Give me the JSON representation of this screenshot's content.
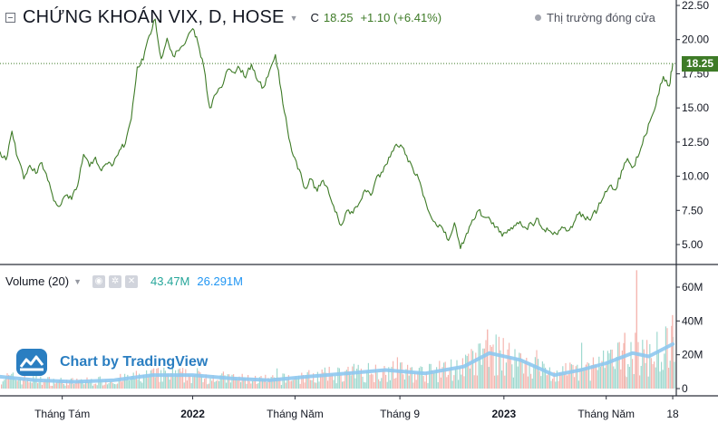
{
  "header": {
    "title": "CHỨNG KHOÁN VIX, D, HOSE",
    "ohlc_label": "C",
    "close": "18.25",
    "change": "+1.10 (+6.41%)",
    "market_status": "Thị trường đóng cửa"
  },
  "volume_header": {
    "title": "Volume (20)",
    "volume": "43.47M",
    "volume_ma": "26.291M"
  },
  "watermark": "Chart by TradingView",
  "colors": {
    "line": "#3e7b27",
    "vol_up": "#9fd9cf",
    "vol_down": "#f5b7b1",
    "vol_ma": "#8ec8f0",
    "grid_text": "#131722"
  },
  "chart_data": [
    {
      "type": "line",
      "title": "CHỨNG KHOÁN VIX, D, HOSE",
      "last_value": "18.25",
      "ylim": [
        3.5,
        22.5
      ],
      "y_ticks": [
        "22.50",
        "20.00",
        "17.50",
        "15.00",
        "12.50",
        "10.00",
        "7.50",
        "5.00"
      ],
      "x_ticks": [
        "Tháng Tám",
        "2022",
        "Tháng Năm",
        "Tháng 9",
        "2023",
        "Tháng Năm",
        "18"
      ],
      "x_tick_dates": [
        "2021-08-01",
        "2022-01-01",
        "2022-05-01",
        "2022-09-01",
        "2023-01-01",
        "2023-05-01",
        "2023-07-18"
      ],
      "series": [
        {
          "values": [
            [
              "2021-05-20",
              11.8
            ],
            [
              "2021-05-27",
              11.2
            ],
            [
              "2021-06-03",
              13.3
            ],
            [
              "2021-06-10",
              11.3
            ],
            [
              "2021-06-17",
              9.8
            ],
            [
              "2021-06-24",
              10.8
            ],
            [
              "2021-07-01",
              10.2
            ],
            [
              "2021-07-08",
              11.0
            ],
            [
              "2021-07-15",
              9.7
            ],
            [
              "2021-07-22",
              8.2
            ],
            [
              "2021-07-29",
              7.8
            ],
            [
              "2021-08-05",
              8.6
            ],
            [
              "2021-08-12",
              8.3
            ],
            [
              "2021-08-19",
              9.3
            ],
            [
              "2021-08-26",
              11.6
            ],
            [
              "2021-09-02",
              10.7
            ],
            [
              "2021-09-09",
              11.4
            ],
            [
              "2021-09-16",
              10.4
            ],
            [
              "2021-09-23",
              10.9
            ],
            [
              "2021-09-30",
              10.9
            ],
            [
              "2021-10-07",
              11.9
            ],
            [
              "2021-10-14",
              12.4
            ],
            [
              "2021-10-21",
              14.2
            ],
            [
              "2021-10-28",
              18.0
            ],
            [
              "2021-11-04",
              18.5
            ],
            [
              "2021-11-11",
              20.3
            ],
            [
              "2021-11-18",
              21.5
            ],
            [
              "2021-11-25",
              18.6
            ],
            [
              "2021-12-02",
              20.1
            ],
            [
              "2021-12-09",
              18.8
            ],
            [
              "2021-12-16",
              19.2
            ],
            [
              "2021-12-23",
              19.7
            ],
            [
              "2022-01-01",
              20.8
            ],
            [
              "2022-01-07",
              19.8
            ],
            [
              "2022-01-14",
              18.0
            ],
            [
              "2022-01-21",
              15.0
            ],
            [
              "2022-01-28",
              16.0
            ],
            [
              "2022-02-04",
              16.5
            ],
            [
              "2022-02-11",
              17.8
            ],
            [
              "2022-02-18",
              17.6
            ],
            [
              "2022-02-25",
              17.9
            ],
            [
              "2022-03-04",
              17.2
            ],
            [
              "2022-03-11",
              18.2
            ],
            [
              "2022-03-18",
              17.0
            ],
            [
              "2022-03-25",
              16.5
            ],
            [
              "2022-04-01",
              17.7
            ],
            [
              "2022-04-08",
              18.9
            ],
            [
              "2022-04-15",
              16.2
            ],
            [
              "2022-04-22",
              13.5
            ],
            [
              "2022-04-29",
              11.5
            ],
            [
              "2022-05-06",
              10.5
            ],
            [
              "2022-05-13",
              9.1
            ],
            [
              "2022-05-20",
              9.8
            ],
            [
              "2022-05-27",
              8.9
            ],
            [
              "2022-06-03",
              9.7
            ],
            [
              "2022-06-10",
              8.7
            ],
            [
              "2022-06-17",
              7.4
            ],
            [
              "2022-06-24",
              6.4
            ],
            [
              "2022-07-01",
              7.5
            ],
            [
              "2022-07-08",
              7.3
            ],
            [
              "2022-07-15",
              8.0
            ],
            [
              "2022-07-22",
              9.0
            ],
            [
              "2022-07-29",
              8.6
            ],
            [
              "2022-08-05",
              10.0
            ],
            [
              "2022-08-12",
              10.3
            ],
            [
              "2022-08-19",
              11.4
            ],
            [
              "2022-08-26",
              12.2
            ],
            [
              "2022-09-02",
              12.3
            ],
            [
              "2022-09-09",
              11.5
            ],
            [
              "2022-09-16",
              10.6
            ],
            [
              "2022-09-23",
              9.8
            ],
            [
              "2022-09-30",
              8.4
            ],
            [
              "2022-10-07",
              7.1
            ],
            [
              "2022-10-14",
              6.4
            ],
            [
              "2022-10-21",
              6.2
            ],
            [
              "2022-10-28",
              5.3
            ],
            [
              "2022-11-04",
              6.6
            ],
            [
              "2022-11-11",
              4.7
            ],
            [
              "2022-11-18",
              5.8
            ],
            [
              "2022-11-25",
              6.8
            ],
            [
              "2022-12-02",
              7.5
            ],
            [
              "2022-12-09",
              7.0
            ],
            [
              "2022-12-16",
              6.8
            ],
            [
              "2022-12-23",
              6.3
            ],
            [
              "2022-12-30",
              5.6
            ],
            [
              "2023-01-06",
              6.1
            ],
            [
              "2023-01-13",
              6.4
            ],
            [
              "2023-01-20",
              6.7
            ],
            [
              "2023-01-27",
              6.2
            ],
            [
              "2023-02-03",
              6.5
            ],
            [
              "2023-02-10",
              6.9
            ],
            [
              "2023-02-17",
              6.1
            ],
            [
              "2023-02-24",
              6.0
            ],
            [
              "2023-03-03",
              5.8
            ],
            [
              "2023-03-10",
              6.3
            ],
            [
              "2023-03-17",
              6.0
            ],
            [
              "2023-03-24",
              6.6
            ],
            [
              "2023-03-31",
              7.4
            ],
            [
              "2023-04-07",
              6.8
            ],
            [
              "2023-04-14",
              7.0
            ],
            [
              "2023-04-21",
              7.6
            ],
            [
              "2023-04-28",
              8.5
            ],
            [
              "2023-05-05",
              9.3
            ],
            [
              "2023-05-12",
              9.0
            ],
            [
              "2023-05-19",
              10.4
            ],
            [
              "2023-05-26",
              11.3
            ],
            [
              "2023-06-02",
              10.7
            ],
            [
              "2023-06-09",
              11.7
            ],
            [
              "2023-06-16",
              13.0
            ],
            [
              "2023-06-23",
              14.3
            ],
            [
              "2023-06-30",
              15.8
            ],
            [
              "2023-07-07",
              17.3
            ],
            [
              "2023-07-14",
              16.6
            ],
            [
              "2023-07-18",
              18.25
            ]
          ]
        }
      ]
    },
    {
      "type": "bar",
      "title": "Volume (20)",
      "ylim": [
        0,
        75
      ],
      "y_ticks": [
        "60M",
        "40M",
        "20M",
        "0"
      ],
      "ma_values": [
        [
          "2021-05-20",
          7
        ],
        [
          "2021-07-01",
          5
        ],
        [
          "2021-08-15",
          4
        ],
        [
          "2021-10-01",
          5
        ],
        [
          "2021-11-15",
          8
        ],
        [
          "2022-01-01",
          8
        ],
        [
          "2022-02-15",
          6
        ],
        [
          "2022-04-01",
          5
        ],
        [
          "2022-05-15",
          7
        ],
        [
          "2022-07-01",
          9
        ],
        [
          "2022-08-15",
          11
        ],
        [
          "2022-10-01",
          9
        ],
        [
          "2022-11-15",
          13
        ],
        [
          "2022-12-15",
          21
        ],
        [
          "2023-01-20",
          17
        ],
        [
          "2023-03-01",
          8
        ],
        [
          "2023-04-01",
          11
        ],
        [
          "2023-05-01",
          15
        ],
        [
          "2023-06-01",
          21
        ],
        [
          "2023-06-20",
          19
        ],
        [
          "2023-07-18",
          26.291
        ]
      ]
    }
  ]
}
